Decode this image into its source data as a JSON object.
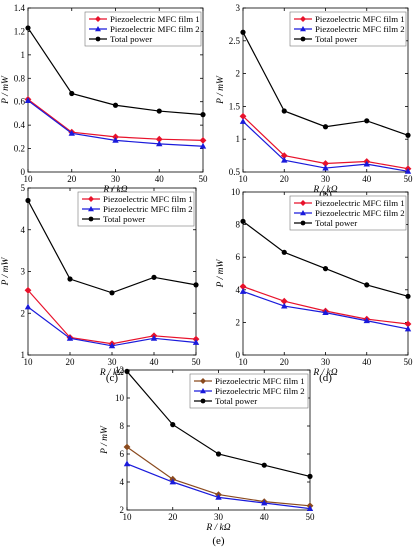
{
  "colors": {
    "film1": "#e8122b",
    "film2": "#1a1adb",
    "total": "#000000",
    "film1_e": "#8a4a1e"
  },
  "legend_labels": [
    "Piezoelectric MFC film 1",
    "Piezoelectric MFC film 2",
    "Total power"
  ],
  "chart_data": [
    {
      "panel_label": "(a)",
      "type": "line",
      "x": [
        10,
        20,
        30,
        40,
        50
      ],
      "xlim": [
        10,
        50
      ],
      "ylim": [
        0,
        1.4
      ],
      "xticks": [
        "10",
        "20",
        "30",
        "40",
        "50"
      ],
      "yticks": [
        "0",
        "0.2",
        "0.4",
        "0.6",
        "0.8",
        "1",
        "1.2",
        "1.4"
      ],
      "xlabel": "R / kΩ",
      "ylabel": "P / mW",
      "legend": "top-right",
      "grid": false,
      "series": [
        {
          "name": "Piezoelectric MFC film 1",
          "values": [
            0.62,
            0.34,
            0.3,
            0.28,
            0.27
          ]
        },
        {
          "name": "Piezoelectric MFC film 2",
          "values": [
            0.61,
            0.33,
            0.27,
            0.24,
            0.22
          ]
        },
        {
          "name": "Total power",
          "values": [
            1.23,
            0.67,
            0.57,
            0.52,
            0.49
          ]
        }
      ]
    },
    {
      "panel_label": "(b)",
      "type": "line",
      "x": [
        10,
        20,
        30,
        40,
        50
      ],
      "xlim": [
        10,
        50
      ],
      "ylim": [
        0.5,
        3
      ],
      "xticks": [
        "10",
        "20",
        "30",
        "40",
        "50"
      ],
      "yticks": [
        "0.5",
        "1",
        "1.5",
        "2",
        "2.5",
        "3"
      ],
      "xlabel": "R / kΩ",
      "ylabel": "P / mW",
      "legend": "top-right",
      "grid": false,
      "series": [
        {
          "name": "Piezoelectric MFC film 1",
          "values": [
            1.35,
            0.75,
            0.63,
            0.66,
            0.55
          ]
        },
        {
          "name": "Piezoelectric MFC film 2",
          "values": [
            1.27,
            0.68,
            0.56,
            0.62,
            0.51
          ]
        },
        {
          "name": "Total power",
          "values": [
            2.63,
            1.43,
            1.19,
            1.28,
            1.06
          ]
        }
      ]
    },
    {
      "panel_label": "(c)",
      "type": "line",
      "x": [
        10,
        20,
        30,
        40,
        50
      ],
      "xlim": [
        10,
        50
      ],
      "ylim": [
        1,
        5
      ],
      "xticks": [
        "10",
        "20",
        "30",
        "40",
        "50"
      ],
      "yticks": [
        "1",
        "2",
        "3",
        "4",
        "5"
      ],
      "xlabel": "R / kΩ",
      "ylabel": "P / mW",
      "legend": "top-right",
      "grid": false,
      "series": [
        {
          "name": "Piezoelectric MFC film 1",
          "values": [
            2.55,
            1.42,
            1.27,
            1.46,
            1.38
          ]
        },
        {
          "name": "Piezoelectric MFC film 2",
          "values": [
            2.15,
            1.4,
            1.22,
            1.4,
            1.3
          ]
        },
        {
          "name": "Total power",
          "values": [
            4.7,
            2.82,
            2.49,
            2.86,
            2.68
          ]
        }
      ]
    },
    {
      "panel_label": "(d)",
      "type": "line",
      "x": [
        10,
        20,
        30,
        40,
        50
      ],
      "xlim": [
        10,
        50
      ],
      "ylim": [
        0,
        10
      ],
      "xticks": [
        "10",
        "20",
        "30",
        "40",
        "50"
      ],
      "yticks": [
        "0",
        "2",
        "4",
        "6",
        "8",
        "10"
      ],
      "xlabel": "R / kΩ",
      "ylabel": "P / mW",
      "legend": "top-right",
      "grid": false,
      "series": [
        {
          "name": "Piezoelectric MFC film 1",
          "values": [
            4.2,
            3.3,
            2.7,
            2.2,
            1.9
          ]
        },
        {
          "name": "Piezoelectric MFC film 2",
          "values": [
            3.9,
            3.0,
            2.6,
            2.1,
            1.6
          ]
        },
        {
          "name": "Total power",
          "values": [
            8.2,
            6.3,
            5.3,
            4.3,
            3.6
          ]
        }
      ]
    },
    {
      "panel_label": "(e)",
      "type": "line",
      "x": [
        10,
        20,
        30,
        40,
        50
      ],
      "xlim": [
        10,
        50
      ],
      "ylim": [
        2,
        12
      ],
      "xticks": [
        "10",
        "20",
        "30",
        "40",
        "50"
      ],
      "yticks": [
        "2",
        "4",
        "6",
        "8",
        "10",
        "12"
      ],
      "xlabel": "R / kΩ",
      "ylabel": "P / mW",
      "legend": "top-right",
      "grid": false,
      "series": [
        {
          "name": "Piezoelectric MFC film 1",
          "values": [
            6.5,
            4.2,
            3.1,
            2.6,
            2.3
          ]
        },
        {
          "name": "Piezoelectric MFC film 2",
          "values": [
            5.3,
            4.0,
            2.9,
            2.5,
            2.1
          ]
        },
        {
          "name": "Total power",
          "values": [
            11.9,
            8.1,
            6.0,
            5.2,
            4.4
          ]
        }
      ]
    }
  ]
}
